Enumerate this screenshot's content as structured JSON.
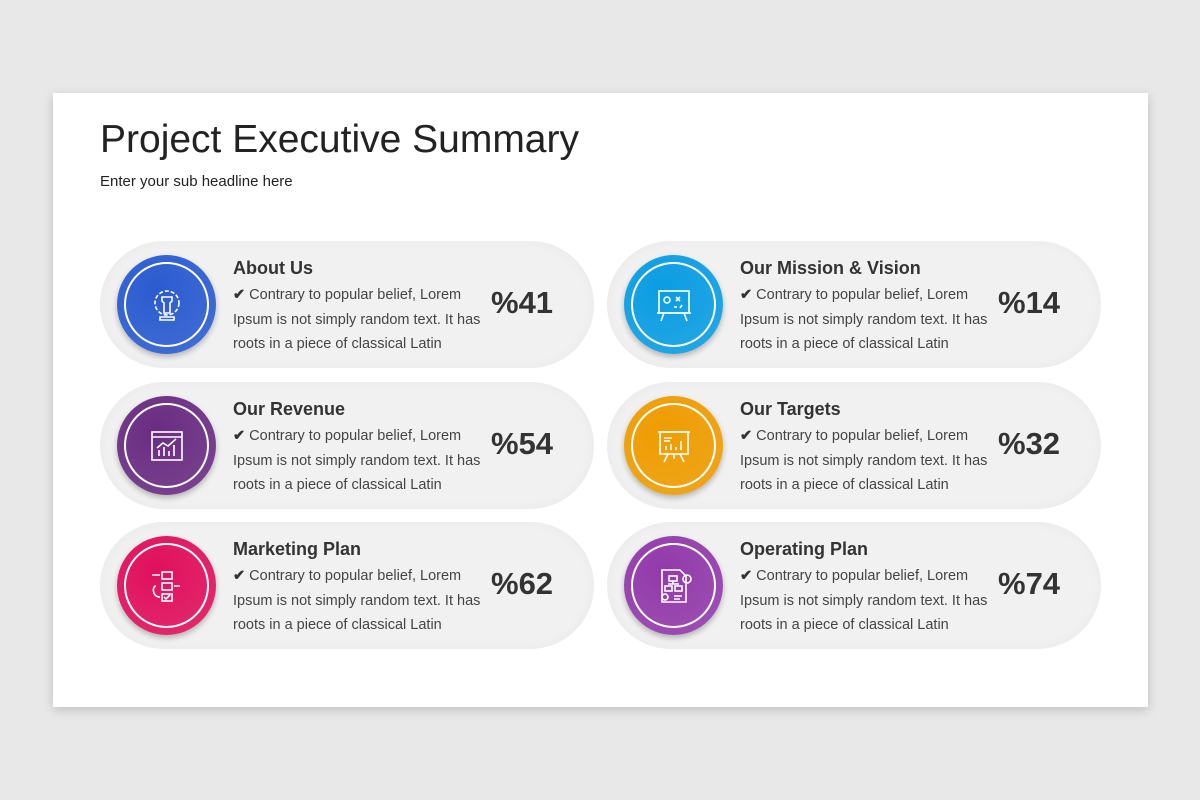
{
  "header": {
    "title": "Project Executive Summary",
    "subtitle": "Enter your sub headline here"
  },
  "cards": [
    {
      "title": "About Us",
      "body": "Contrary to popular belief, Lorem Ipsum is not simply random text. It has roots in a piece of classical Latin",
      "percent": "%41",
      "icon": "chess-gear-icon",
      "color": "#2a5bd0"
    },
    {
      "title": "Our Mission & Vision",
      "body": "Contrary to popular belief, Lorem Ipsum is not simply random text. It has roots in a piece of classical Latin",
      "percent": "%14",
      "icon": "strategy-board-icon",
      "color": "#0a9de2"
    },
    {
      "title": "Our Revenue",
      "body": "Contrary to popular belief, Lorem Ipsum is not simply random text. It has roots in a piece of classical Latin",
      "percent": "%54",
      "icon": "revenue-chart-icon",
      "color": "#6a2c82"
    },
    {
      "title": "Our Targets",
      "body": "Contrary to popular belief, Lorem Ipsum is not simply random text. It has roots in a piece of classical Latin",
      "percent": "%32",
      "icon": "presentation-chart-icon",
      "color": "#ef9c00"
    },
    {
      "title": "Marketing Plan",
      "body": "Contrary to popular belief, Lorem Ipsum is not simply random text. It has roots in a piece of classical Latin",
      "percent": "%62",
      "icon": "workflow-icon",
      "color": "#e0105c"
    },
    {
      "title": "Operating Plan",
      "body": "Contrary to popular belief, Lorem Ipsum is not simply random text. It has roots in a piece of classical Latin",
      "percent": "%74",
      "icon": "document-plan-icon",
      "color": "#923aaa"
    }
  ],
  "check_icon": "✔"
}
